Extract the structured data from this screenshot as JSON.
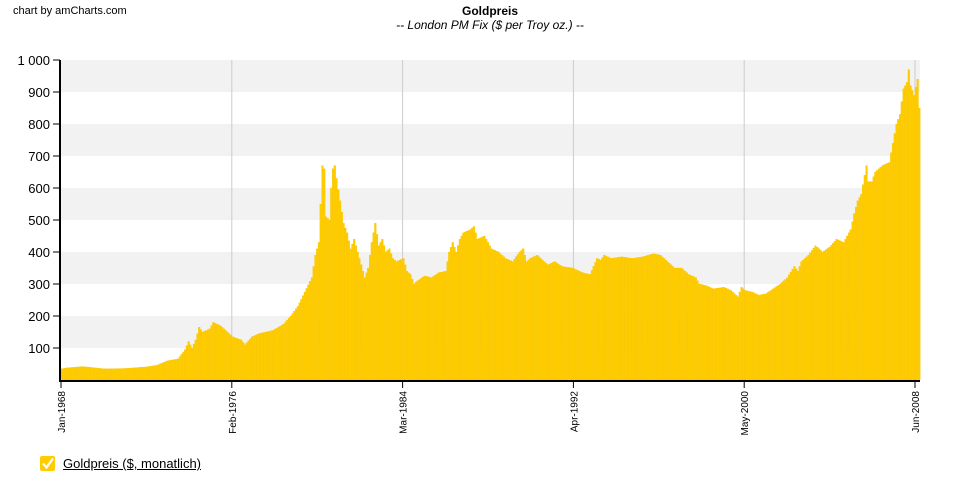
{
  "credit": "chart by amCharts.com",
  "colors": {
    "bar": "#FFCC00",
    "bar_stroke": "#F5C400",
    "band": "#F2F2F2",
    "gridline": "#CCCCCC",
    "axis": "#000000"
  },
  "legend": {
    "items": [
      {
        "label": "Goldpreis ($, monatlich)",
        "checked": true,
        "icon": "checkbox-check-icon"
      }
    ]
  },
  "chart_data": {
    "type": "bar",
    "title": "Goldpreis",
    "subtitle": "-- London PM Fix ($ per Troy oz.) --",
    "xlabel": "",
    "ylabel": "",
    "ylim": [
      0,
      1000
    ],
    "y_ticks": [
      {
        "value": 100,
        "label": "100"
      },
      {
        "value": 200,
        "label": "200"
      },
      {
        "value": 300,
        "label": "300"
      },
      {
        "value": 400,
        "label": "400"
      },
      {
        "value": 500,
        "label": "500"
      },
      {
        "value": 600,
        "label": "600"
      },
      {
        "value": 700,
        "label": "700"
      },
      {
        "value": 800,
        "label": "800"
      },
      {
        "value": 900,
        "label": "900"
      },
      {
        "value": 1000,
        "label": "1 000"
      }
    ],
    "x_ticks": [
      {
        "month_index": 0,
        "label": "Jan-1968"
      },
      {
        "month_index": 97,
        "label": "Feb-1976"
      },
      {
        "month_index": 194,
        "label": "Mar-1984"
      },
      {
        "month_index": 291,
        "label": "Apr-1992"
      },
      {
        "month_index": 388,
        "label": "May-2000"
      },
      {
        "month_index": 485,
        "label": "Jun-2008"
      }
    ],
    "grid": {
      "horizontal_bands": true,
      "vertical_lines": true
    },
    "legend_position": "bottom-left",
    "series": [
      {
        "name": "Goldpreis ($, monatlich)",
        "frequency": "monthly",
        "start": "Jan-1968",
        "months": 488,
        "anchor_points": [
          [
            0,
            35
          ],
          [
            3,
            38
          ],
          [
            12,
            42
          ],
          [
            24,
            35
          ],
          [
            36,
            36
          ],
          [
            48,
            41
          ],
          [
            54,
            46
          ],
          [
            60,
            60
          ],
          [
            66,
            66
          ],
          [
            70,
            95
          ],
          [
            72,
            120
          ],
          [
            74,
            100
          ],
          [
            76,
            125
          ],
          [
            78,
            165
          ],
          [
            80,
            150
          ],
          [
            84,
            160
          ],
          [
            86,
            180
          ],
          [
            90,
            170
          ],
          [
            94,
            150
          ],
          [
            97,
            135
          ],
          [
            102,
            125
          ],
          [
            104,
            110
          ],
          [
            108,
            135
          ],
          [
            112,
            145
          ],
          [
            120,
            155
          ],
          [
            126,
            175
          ],
          [
            130,
            200
          ],
          [
            134,
            230
          ],
          [
            138,
            275
          ],
          [
            142,
            320
          ],
          [
            144,
            390
          ],
          [
            146,
            430
          ],
          [
            148,
            670
          ],
          [
            149,
            660
          ],
          [
            150,
            510
          ],
          [
            152,
            500
          ],
          [
            153,
            600
          ],
          [
            154,
            660
          ],
          [
            155,
            670
          ],
          [
            156,
            630
          ],
          [
            158,
            560
          ],
          [
            160,
            490
          ],
          [
            162,
            460
          ],
          [
            164,
            410
          ],
          [
            166,
            440
          ],
          [
            168,
            400
          ],
          [
            170,
            360
          ],
          [
            172,
            320
          ],
          [
            174,
            350
          ],
          [
            176,
            430
          ],
          [
            178,
            490
          ],
          [
            180,
            420
          ],
          [
            182,
            440
          ],
          [
            184,
            400
          ],
          [
            186,
            410
          ],
          [
            188,
            380
          ],
          [
            190,
            370
          ],
          [
            194,
            380
          ],
          [
            196,
            340
          ],
          [
            198,
            330
          ],
          [
            200,
            300
          ],
          [
            202,
            310
          ],
          [
            206,
            325
          ],
          [
            210,
            320
          ],
          [
            214,
            335
          ],
          [
            218,
            340
          ],
          [
            220,
            400
          ],
          [
            222,
            430
          ],
          [
            224,
            400
          ],
          [
            226,
            440
          ],
          [
            228,
            460
          ],
          [
            232,
            470
          ],
          [
            234,
            480
          ],
          [
            236,
            440
          ],
          [
            240,
            450
          ],
          [
            244,
            410
          ],
          [
            248,
            400
          ],
          [
            252,
            380
          ],
          [
            256,
            370
          ],
          [
            260,
            400
          ],
          [
            262,
            410
          ],
          [
            264,
            370
          ],
          [
            266,
            380
          ],
          [
            270,
            390
          ],
          [
            276,
            360
          ],
          [
            280,
            370
          ],
          [
            284,
            355
          ],
          [
            290,
            350
          ],
          [
            296,
            335
          ],
          [
            300,
            330
          ],
          [
            304,
            380
          ],
          [
            306,
            375
          ],
          [
            308,
            390
          ],
          [
            312,
            380
          ],
          [
            318,
            385
          ],
          [
            324,
            380
          ],
          [
            330,
            385
          ],
          [
            336,
            395
          ],
          [
            340,
            390
          ],
          [
            344,
            370
          ],
          [
            348,
            350
          ],
          [
            352,
            350
          ],
          [
            356,
            330
          ],
          [
            360,
            320
          ],
          [
            362,
            300
          ],
          [
            366,
            295
          ],
          [
            370,
            285
          ],
          [
            376,
            290
          ],
          [
            380,
            280
          ],
          [
            384,
            260
          ],
          [
            386,
            290
          ],
          [
            388,
            280
          ],
          [
            392,
            275
          ],
          [
            396,
            265
          ],
          [
            400,
            270
          ],
          [
            404,
            285
          ],
          [
            408,
            300
          ],
          [
            412,
            320
          ],
          [
            416,
            355
          ],
          [
            418,
            340
          ],
          [
            420,
            370
          ],
          [
            424,
            390
          ],
          [
            428,
            420
          ],
          [
            432,
            400
          ],
          [
            436,
            415
          ],
          [
            440,
            440
          ],
          [
            444,
            430
          ],
          [
            448,
            470
          ],
          [
            450,
            520
          ],
          [
            452,
            560
          ],
          [
            454,
            580
          ],
          [
            456,
            640
          ],
          [
            457,
            670
          ],
          [
            458,
            620
          ],
          [
            460,
            620
          ],
          [
            462,
            650
          ],
          [
            466,
            670
          ],
          [
            470,
            680
          ],
          [
            472,
            740
          ],
          [
            474,
            800
          ],
          [
            476,
            830
          ],
          [
            478,
            910
          ],
          [
            480,
            930
          ],
          [
            481,
            970
          ],
          [
            482,
            920
          ],
          [
            484,
            890
          ],
          [
            486,
            940
          ],
          [
            487,
            850
          ]
        ]
      }
    ]
  }
}
